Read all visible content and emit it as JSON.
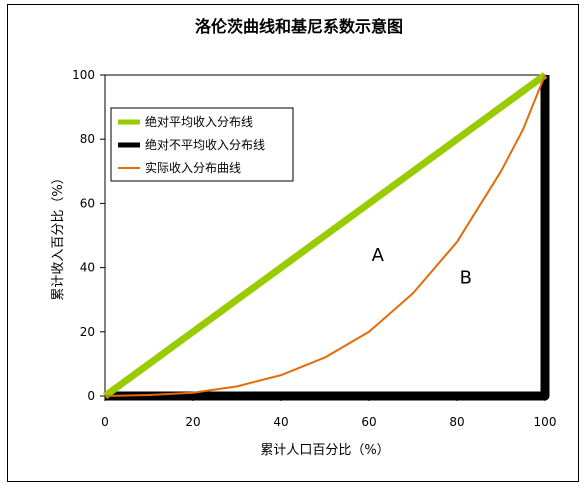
{
  "chart_data": {
    "type": "line",
    "title": "洛伦茨曲线和基尼系数示意图",
    "xlabel": "累计人口百分比（%）",
    "ylabel": "累计收入百分比（%）",
    "xlim": [
      0,
      100
    ],
    "ylim": [
      0,
      100
    ],
    "x_ticks": [
      "0",
      "20",
      "40",
      "60",
      "80",
      "100"
    ],
    "y_ticks": [
      "0",
      "20",
      "40",
      "60",
      "80",
      "100"
    ],
    "legend_position": "top-left",
    "series": [
      {
        "name": "绝对平均收入分布线",
        "color": "#99cc00",
        "x": [
          0,
          100
        ],
        "y": [
          0,
          100
        ]
      },
      {
        "name": "绝对不平均收入分布线",
        "color": "#000000",
        "x": [
          0,
          100,
          100
        ],
        "y": [
          0,
          0,
          100
        ]
      },
      {
        "name": "实际收入分布曲线",
        "color": "#e36c0a",
        "x": [
          0,
          10,
          20,
          30,
          40,
          50,
          60,
          70,
          80,
          90,
          95,
          100
        ],
        "y": [
          0,
          0.3,
          1,
          3,
          6.5,
          12,
          20,
          32,
          48,
          70,
          83,
          100
        ]
      }
    ],
    "annotations": [
      {
        "text": "A",
        "x": 62,
        "y": 42
      },
      {
        "text": "B",
        "x": 82,
        "y": 35
      }
    ]
  }
}
